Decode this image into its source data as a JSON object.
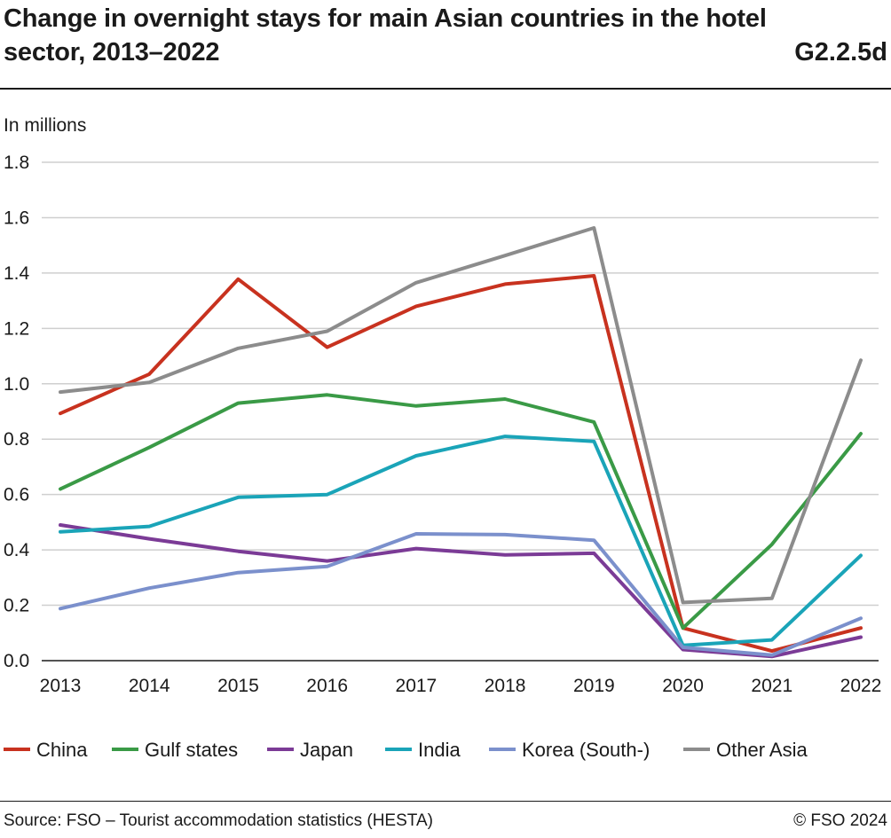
{
  "header": {
    "title": "Change in overnight stays for main Asian countries in the hotel sector, 2013–2022",
    "code": "G2.2.5d"
  },
  "footer": {
    "source": "Source: FSO – Tourist accommodation statistics (HESTA)",
    "copyright": "© FSO 2024"
  },
  "chart_data": {
    "type": "line",
    "title": "Change in overnight stays for main Asian countries in the hotel sector, 2013–2022",
    "ylabel": "In millions",
    "xlabel": "",
    "ylim": [
      0,
      1.8
    ],
    "yticks": [
      "0.0",
      "0.2",
      "0.4",
      "0.6",
      "0.8",
      "1.0",
      "1.2",
      "1.4",
      "1.6",
      "1.8"
    ],
    "categories": [
      "2013",
      "2014",
      "2015",
      "2016",
      "2017",
      "2018",
      "2019",
      "2020",
      "2021",
      "2022"
    ],
    "grid": true,
    "legend_position": "bottom",
    "series": [
      {
        "name": "China",
        "color": "#c8321f",
        "values": [
          0.893,
          1.035,
          1.378,
          1.132,
          1.28,
          1.36,
          1.39,
          0.118,
          0.035,
          0.118
        ]
      },
      {
        "name": "Gulf states",
        "color": "#3a9a46",
        "values": [
          0.62,
          0.77,
          0.93,
          0.96,
          0.92,
          0.945,
          0.862,
          0.118,
          0.42,
          0.82
        ]
      },
      {
        "name": "Japan",
        "color": "#7b3b96",
        "values": [
          0.49,
          0.44,
          0.395,
          0.36,
          0.405,
          0.382,
          0.388,
          0.04,
          0.015,
          0.085
        ]
      },
      {
        "name": "India",
        "color": "#1aa4b8",
        "values": [
          0.465,
          0.485,
          0.59,
          0.6,
          0.74,
          0.81,
          0.792,
          0.055,
          0.075,
          0.38
        ]
      },
      {
        "name": "Korea (South-)",
        "color": "#7b90cc",
        "values": [
          0.188,
          0.262,
          0.318,
          0.34,
          0.458,
          0.455,
          0.435,
          0.048,
          0.02,
          0.153
        ]
      },
      {
        "name": "Other Asia",
        "color": "#8c8c8c",
        "values": [
          0.97,
          1.005,
          1.128,
          1.19,
          1.365,
          1.463,
          1.563,
          0.21,
          0.225,
          1.085
        ]
      }
    ]
  }
}
